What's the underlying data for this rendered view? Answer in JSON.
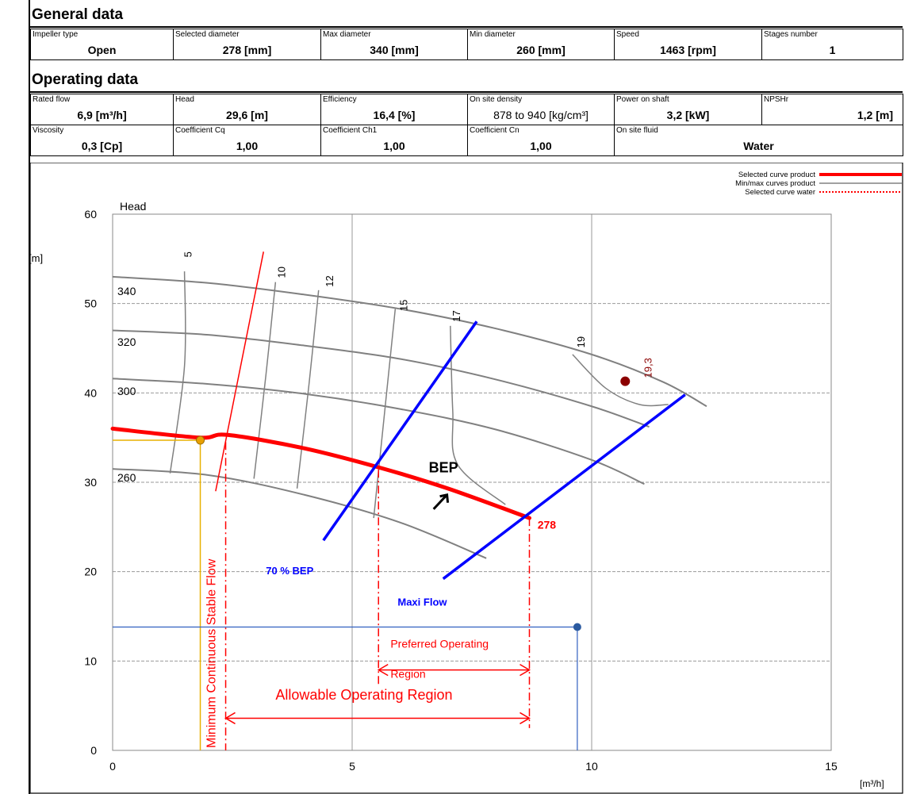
{
  "general": {
    "title": "General data",
    "cells": [
      {
        "label": "Impeller type",
        "value": "Open"
      },
      {
        "label": "Selected diameter",
        "value": "278 [mm]"
      },
      {
        "label": "Max diameter",
        "value": "340 [mm]"
      },
      {
        "label": "Min diameter",
        "value": "260 [mm]"
      },
      {
        "label": "Speed",
        "value": "1463 [rpm]"
      },
      {
        "label": "Stages number",
        "value": "1"
      }
    ]
  },
  "operating": {
    "title": "Operating data",
    "row1": [
      {
        "label": "Rated flow",
        "value": "6,9 [m³/h]"
      },
      {
        "label": "Head",
        "value": "29,6 [m]"
      },
      {
        "label": "Efficiency",
        "value": "16,4 [%]"
      },
      {
        "label": "On site density",
        "value": "878 to 940 [kg/cm³]"
      },
      {
        "label": "Power on shaft",
        "value": "3,2 [kW]"
      },
      {
        "label": "NPSHr",
        "value": "1,2 [m]"
      }
    ],
    "row2": [
      {
        "label": "Viscosity",
        "value": "0,3 [Cp]"
      },
      {
        "label": "Coefficient Cq",
        "value": "1,00"
      },
      {
        "label": "Coefficient Ch1",
        "value": "1,00"
      },
      {
        "label": "Coefficient Cn",
        "value": "1,00"
      },
      {
        "label": "On site fluid",
        "value": "Water"
      }
    ]
  },
  "chart_data": {
    "type": "line",
    "ylabel": "Head",
    "yunit": "[m]",
    "xunit": "[m³/h]",
    "xlim": [
      0,
      15
    ],
    "ylim": [
      0,
      60
    ],
    "xticks": [
      0,
      5,
      10,
      15
    ],
    "yticks": [
      0,
      10,
      20,
      30,
      40,
      50,
      60
    ],
    "grid": true,
    "colors": {
      "selected": "#ff0000",
      "minmax": "#808080",
      "blue": "#0000ff",
      "region": "#ff0000",
      "yellow": "#e8b000",
      "dutyline": "#3060c0"
    },
    "legend": {
      "position": "top-right",
      "items": [
        "Selected curve product",
        "Min/max curves product",
        "Selected curve water"
      ]
    },
    "diameter_curves": [
      {
        "label": "340",
        "x": [
          0,
          2,
          4,
          6,
          8,
          10,
          11.5,
          12.4
        ],
        "y": [
          53,
          52.3,
          51,
          49.4,
          47.2,
          44.3,
          41.2,
          38.5
        ]
      },
      {
        "label": "320",
        "x": [
          0,
          2,
          4,
          6,
          8,
          10,
          11.2
        ],
        "y": [
          47,
          46.5,
          45.3,
          43.8,
          41.5,
          38.5,
          36.2
        ]
      },
      {
        "label": "300",
        "x": [
          0,
          2,
          4,
          6,
          8,
          10,
          11.1
        ],
        "y": [
          41.6,
          41,
          39.9,
          38.2,
          35.9,
          32.5,
          29.8
        ]
      },
      {
        "label": "260",
        "x": [
          0,
          2,
          4,
          6,
          7.8
        ],
        "y": [
          31.5,
          30.8,
          28.6,
          25.5,
          21.5
        ]
      }
    ],
    "selected_curve": {
      "label": "278",
      "x": [
        0,
        1.8,
        2.4,
        4,
        5.6,
        7,
        8.7
      ],
      "y": [
        36,
        35,
        35.3,
        33.8,
        31.6,
        29.3,
        26
      ]
    },
    "efficiency_labels": [
      "5",
      "10",
      "12",
      "15",
      "17",
      "19",
      "19,3"
    ],
    "bep_label": "BEP",
    "bep_arrow": [
      {
        "x": 6.7,
        "y": 27
      },
      {
        "x": 6.98,
        "y": 28.6
      }
    ],
    "best_point": {
      "x": 10.7,
      "y": 41.3
    },
    "mcsf_line": {
      "x": [
        2.15,
        3.15
      ],
      "y": [
        29,
        55.8
      ]
    },
    "bep70_line": {
      "label": "70 % BEP",
      "x": [
        4.4,
        7.6
      ],
      "y": [
        23.5,
        48
      ]
    },
    "maxflow_line": {
      "label": "Maxi Flow",
      "x": [
        6.9,
        11.95
      ],
      "y": [
        19.2,
        39.8
      ]
    },
    "duty_point": {
      "x": 9.7,
      "y": 13.8
    },
    "mcsf_point": {
      "x": 1.83,
      "y": 34.7
    },
    "region_labels": {
      "mcsf": "Minimum Continuous Stable Flow",
      "preferred_1": "Preferred Operating",
      "preferred_2": "Region",
      "allowable": "Allowable Operating Region"
    },
    "region_bounds": {
      "mcsf_x": 2.36,
      "bep70_x": 5.55,
      "max_x": 8.7,
      "preferred_y": 9,
      "allowable_y": 3.6
    }
  }
}
